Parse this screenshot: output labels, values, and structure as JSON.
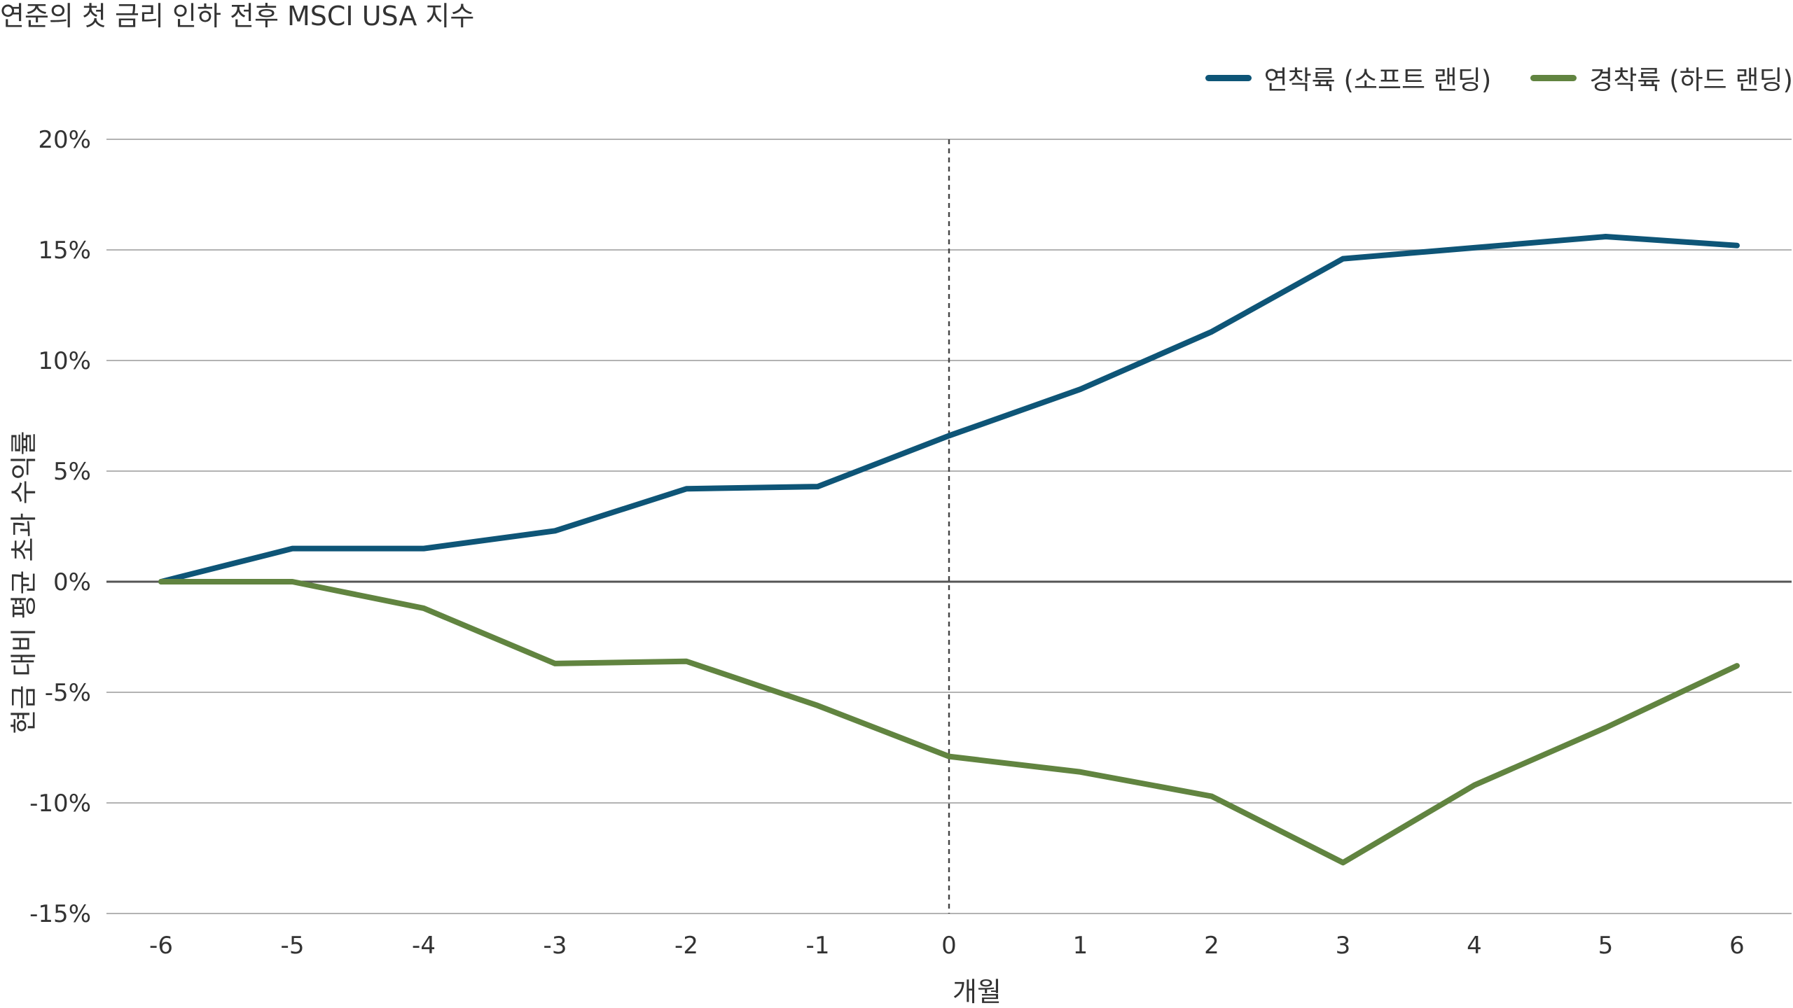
{
  "chart_data": {
    "type": "line",
    "title": "연준의 첫 금리 인하 전후 MSCI USA 지수",
    "xlabel": "개월",
    "ylabel": "현금 대비 평균 초과 수익률",
    "x": [
      -6,
      -5,
      -4,
      -3,
      -2,
      -1,
      0,
      1,
      2,
      3,
      4,
      5,
      6
    ],
    "x_tick_labels": [
      "-6",
      "-5",
      "-4",
      "-3",
      "-2",
      "-1",
      "0",
      "1",
      "2",
      "3",
      "4",
      "5",
      "6"
    ],
    "ylim": [
      -15,
      20
    ],
    "y_ticks": [
      20,
      15,
      10,
      5,
      0,
      -5,
      -10,
      -15
    ],
    "y_tick_labels": [
      "20%",
      "15%",
      "10%",
      "5%",
      "0%",
      "-5%",
      "-10%",
      "-15%"
    ],
    "grid": "horizontal",
    "legend_position": "top-right",
    "reference_line_x": 0,
    "series": [
      {
        "name": "연착륙 (소프트 랜딩)",
        "color": "#0e5577",
        "values": [
          0,
          1.5,
          1.5,
          2.3,
          4.2,
          4.3,
          6.6,
          8.7,
          11.3,
          14.6,
          15.1,
          15.6,
          15.2
        ]
      },
      {
        "name": "경착륙 (하드 랜딩)",
        "color": "#618440",
        "values": [
          0,
          0,
          -1.2,
          -3.7,
          -3.6,
          -5.6,
          -7.9,
          -8.6,
          -9.7,
          -12.7,
          -9.2,
          -6.6,
          -3.8
        ]
      }
    ]
  }
}
